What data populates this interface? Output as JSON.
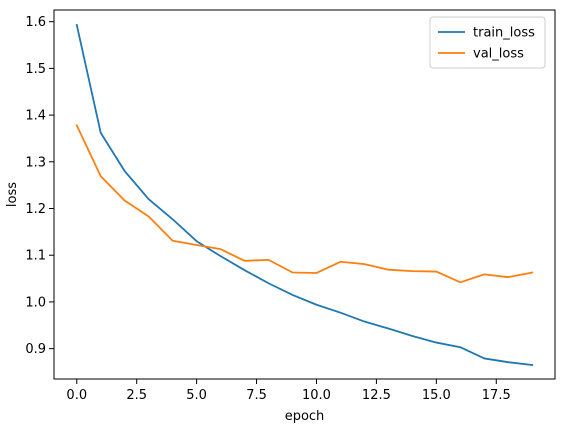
{
  "chart_data": {
    "type": "line",
    "xlabel": "epoch",
    "ylabel": "loss",
    "xlim": [
      -0.95,
      19.95
    ],
    "ylim": [
      0.835,
      1.625
    ],
    "xticks": [
      0.0,
      2.5,
      5.0,
      7.5,
      10.0,
      12.5,
      15.0,
      17.5
    ],
    "xtick_labels": [
      "0.0",
      "2.5",
      "5.0",
      "7.5",
      "10.0",
      "12.5",
      "15.0",
      "17.5"
    ],
    "yticks": [
      0.9,
      1.0,
      1.1,
      1.2,
      1.3,
      1.4,
      1.5,
      1.6
    ],
    "ytick_labels": [
      "0.9",
      "1.0",
      "1.1",
      "1.2",
      "1.3",
      "1.4",
      "1.5",
      "1.6"
    ],
    "legend_position": "top-right",
    "x": [
      0,
      1,
      2,
      3,
      4,
      5,
      6,
      7,
      8,
      9,
      10,
      11,
      12,
      13,
      14,
      15,
      16,
      17,
      18,
      19
    ],
    "series": [
      {
        "name": "train_loss",
        "color": "#1f77b4",
        "values": [
          1.593,
          1.362,
          1.28,
          1.22,
          1.177,
          1.13,
          1.098,
          1.068,
          1.04,
          1.015,
          0.994,
          0.977,
          0.958,
          0.943,
          0.927,
          0.913,
          0.903,
          0.879,
          0.871,
          0.865
        ]
      },
      {
        "name": "val_loss",
        "color": "#ff7f0e",
        "values": [
          1.378,
          1.269,
          1.217,
          1.183,
          1.131,
          1.122,
          1.113,
          1.088,
          1.09,
          1.063,
          1.062,
          1.086,
          1.081,
          1.069,
          1.066,
          1.065,
          1.042,
          1.059,
          1.053,
          1.063
        ]
      }
    ]
  }
}
